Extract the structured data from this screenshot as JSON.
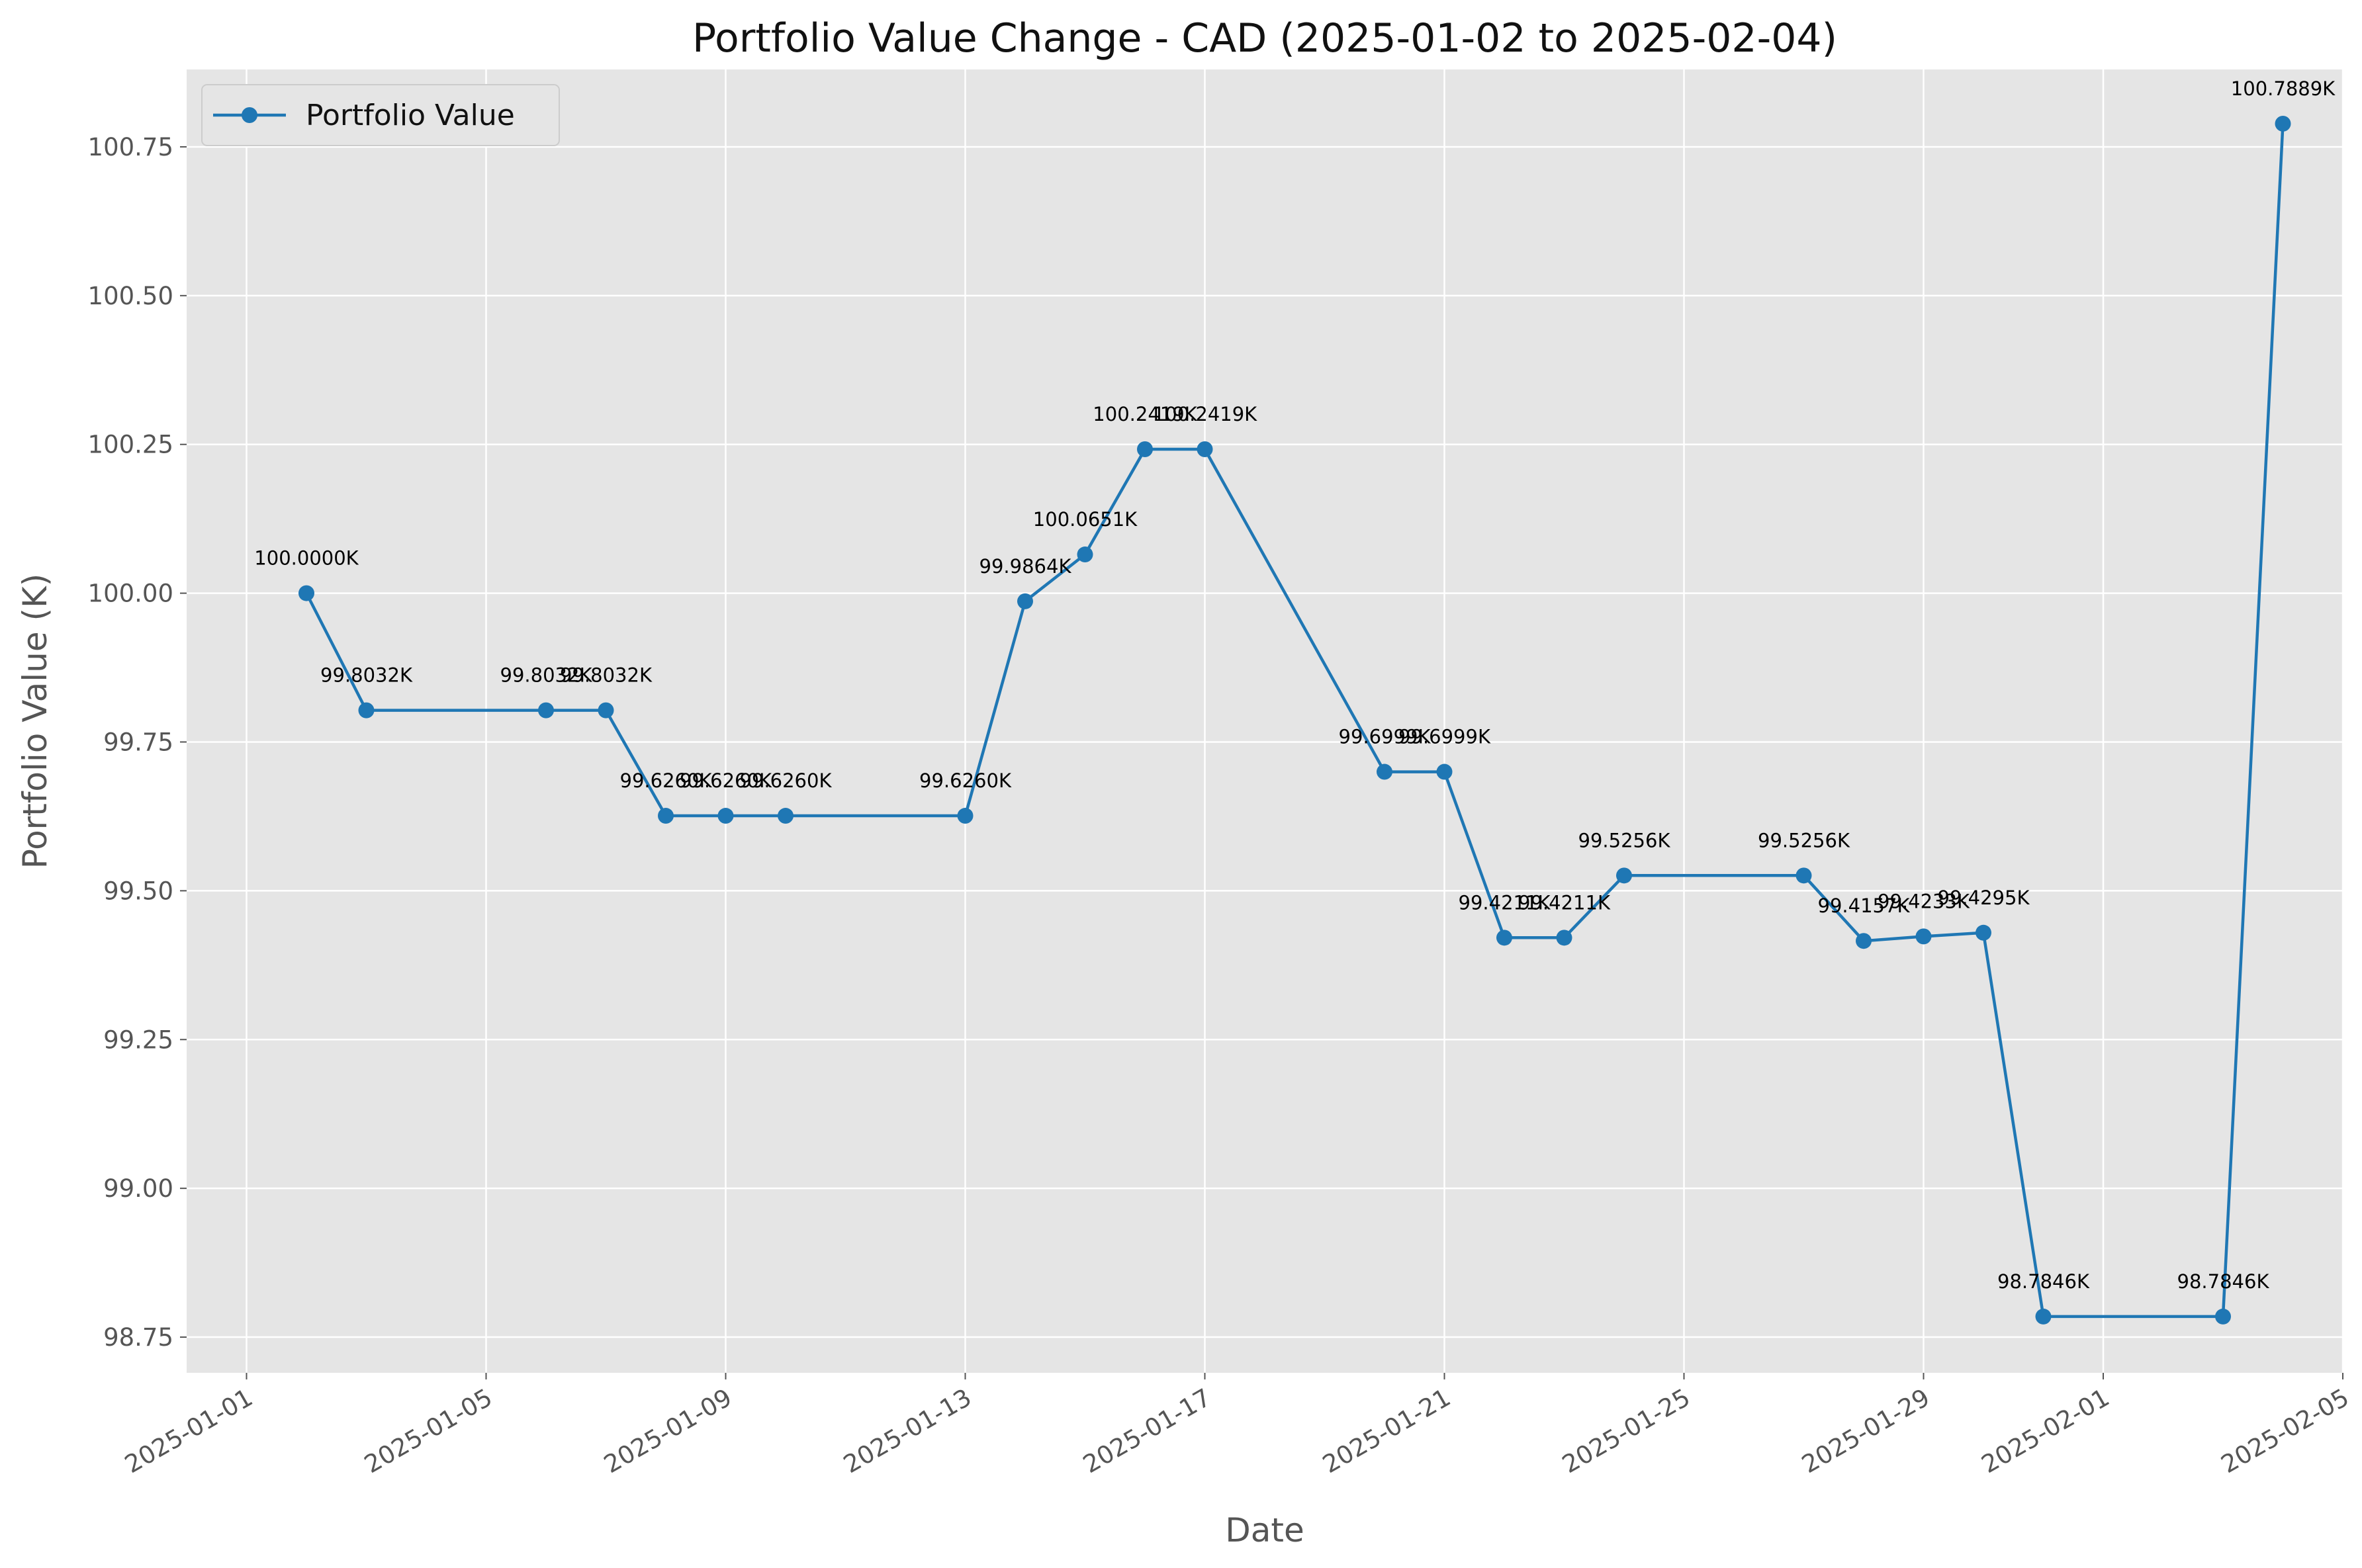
{
  "colors": {
    "plot_background": "#e5e5e5",
    "grid": "#ffffff",
    "series": "#1f77b4",
    "text": "#555555"
  },
  "chart_data": {
    "type": "line",
    "title": "Portfolio Value Change - CAD (2025-01-02 to 2025-02-04)",
    "xlabel": "Date",
    "ylabel": "Portfolio Value (K)",
    "grid": true,
    "legend_position": "top-left",
    "xlim": [
      "2024-12-31",
      "2025-02-05"
    ],
    "ylim": [
      98.69,
      100.88
    ],
    "x_ticks": [
      "2025-01-01",
      "2025-01-05",
      "2025-01-09",
      "2025-01-13",
      "2025-01-17",
      "2025-01-21",
      "2025-01-25",
      "2025-01-29",
      "2025-02-01",
      "2025-02-05"
    ],
    "y_ticks": [
      "98.75",
      "99.00",
      "99.25",
      "99.50",
      "99.75",
      "100.00",
      "100.25",
      "100.50",
      "100.75"
    ],
    "series": [
      {
        "name": "Portfolio Value",
        "marker": "circle",
        "x": [
          "2025-01-02",
          "2025-01-03",
          "2025-01-06",
          "2025-01-07",
          "2025-01-08",
          "2025-01-09",
          "2025-01-10",
          "2025-01-13",
          "2025-01-14",
          "2025-01-15",
          "2025-01-16",
          "2025-01-17",
          "2025-01-20",
          "2025-01-21",
          "2025-01-22",
          "2025-01-23",
          "2025-01-24",
          "2025-01-27",
          "2025-01-28",
          "2025-01-29",
          "2025-01-30",
          "2025-01-31",
          "2025-02-03",
          "2025-02-04"
        ],
        "values": [
          100.0,
          99.8032,
          99.8032,
          99.8032,
          99.626,
          99.626,
          99.626,
          99.626,
          99.9864,
          100.0651,
          100.2419,
          100.2419,
          99.6999,
          99.6999,
          99.4211,
          99.4211,
          99.5256,
          99.5256,
          99.4157,
          99.4233,
          99.4295,
          98.7846,
          98.7846,
          100.7889
        ],
        "labels": [
          "100.0000K",
          "99.8032K",
          "99.8032K",
          "99.8032K",
          "99.6260K",
          "99.6260K",
          "99.6260K",
          "99.6260K",
          "99.9864K",
          "100.0651K",
          "100.2419K",
          "100.2419K",
          "99.6999K",
          "99.6999K",
          "99.4211K",
          "99.4211K",
          "99.5256K",
          "99.5256K",
          "99.4157K",
          "99.4233K",
          "99.4295K",
          "98.7846K",
          "98.7846K",
          "100.7889K"
        ]
      }
    ]
  }
}
